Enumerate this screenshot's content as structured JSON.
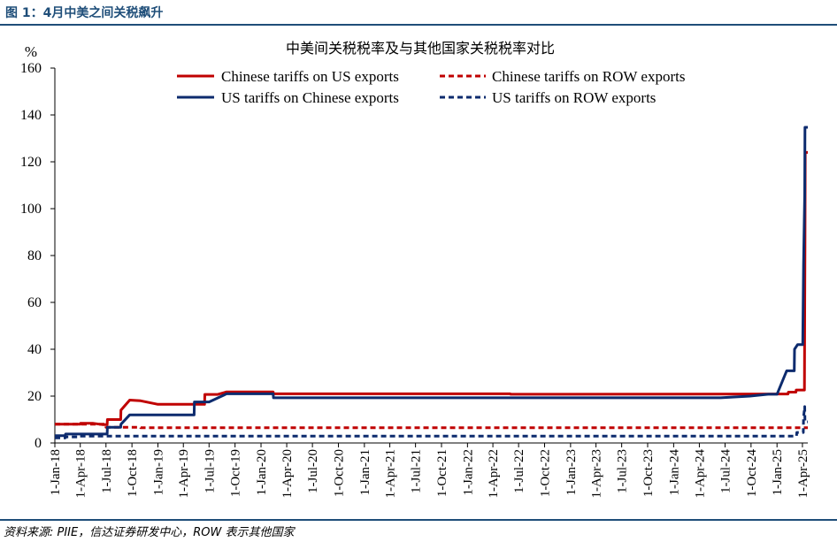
{
  "figure": {
    "title": "图 1：4月中美之间关税飙升",
    "source": "资料来源: PIIE，信达证券研发中心，ROW 表示其他国家"
  },
  "colors": {
    "red": "#c00000",
    "navy": "#0d2b6e",
    "title_blue": "#1f4e79"
  },
  "chart_data": {
    "type": "line",
    "title": "中美间关税税率及与其他国家关税税率对比",
    "ylabel": "%",
    "ylim": [
      0,
      160
    ],
    "yticks": [
      0,
      20,
      40,
      60,
      80,
      100,
      120,
      140,
      160
    ],
    "xlim": [
      "2018-01-01",
      "2025-04-20"
    ],
    "xticks": [
      "2018-01-01",
      "2018-04-01",
      "2018-07-01",
      "2018-10-01",
      "2019-01-01",
      "2019-04-01",
      "2019-07-01",
      "2019-10-01",
      "2020-01-01",
      "2020-04-01",
      "2020-07-01",
      "2020-10-01",
      "2021-01-01",
      "2021-04-01",
      "2021-07-01",
      "2021-10-01",
      "2022-01-01",
      "2022-04-01",
      "2022-07-01",
      "2022-10-01",
      "2023-01-01",
      "2023-04-01",
      "2023-07-01",
      "2023-10-01",
      "2024-01-01",
      "2024-04-01",
      "2024-07-01",
      "2024-10-01",
      "2025-01-01",
      "2025-04-01"
    ],
    "xtick_labels": [
      "1-Jan-18",
      "1-Apr-18",
      "1-Jul-18",
      "1-Oct-18",
      "1-Jan-19",
      "1-Apr-19",
      "1-Jul-19",
      "1-Oct-19",
      "1-Jan-20",
      "1-Apr-20",
      "1-Jul-20",
      "1-Oct-20",
      "1-Jan-21",
      "1-Apr-21",
      "1-Jul-21",
      "1-Oct-21",
      "1-Jan-22",
      "1-Apr-22",
      "1-Jul-22",
      "1-Oct-22",
      "1-Jan-23",
      "1-Apr-23",
      "1-Jul-23",
      "1-Oct-23",
      "1-Jan-24",
      "1-Apr-24",
      "1-Jul-24",
      "1-Oct-24",
      "1-Jan-25",
      "1-Apr-25"
    ],
    "grid": false,
    "legend_position": "top",
    "series": [
      {
        "name": "Chinese tariffs on US exports",
        "color": "red",
        "dash": "solid",
        "points": [
          [
            "2018-01-01",
            8.0
          ],
          [
            "2018-04-01",
            8.0
          ],
          [
            "2018-04-02",
            8.4
          ],
          [
            "2018-05-15",
            8.4
          ],
          [
            "2018-06-20",
            7.8
          ],
          [
            "2018-07-05",
            7.8
          ],
          [
            "2018-07-06",
            10.0
          ],
          [
            "2018-08-22",
            10.0
          ],
          [
            "2018-08-23",
            14.0
          ],
          [
            "2018-09-23",
            18.3
          ],
          [
            "2018-11-01",
            18.0
          ],
          [
            "2019-01-01",
            16.5
          ],
          [
            "2019-06-15",
            16.5
          ],
          [
            "2019-06-16",
            20.7
          ],
          [
            "2019-08-01",
            20.7
          ],
          [
            "2019-09-01",
            21.8
          ],
          [
            "2020-02-13",
            21.8
          ],
          [
            "2020-02-14",
            21.0
          ],
          [
            "2022-06-01",
            21.0
          ],
          [
            "2022-06-02",
            20.8
          ],
          [
            "2025-01-01",
            20.9
          ],
          [
            "2025-02-09",
            20.9
          ],
          [
            "2025-02-10",
            21.7
          ],
          [
            "2025-03-09",
            21.7
          ],
          [
            "2025-03-10",
            22.6
          ],
          [
            "2025-04-08",
            22.6
          ],
          [
            "2025-04-09",
            56.0
          ],
          [
            "2025-04-10",
            84.0
          ],
          [
            "2025-04-11",
            124.0
          ],
          [
            "2025-04-20",
            124.0
          ]
        ]
      },
      {
        "name": "Chinese tariffs on ROW exports",
        "color": "red",
        "dash": "dashed",
        "points": [
          [
            "2018-01-01",
            8.0
          ],
          [
            "2018-06-30",
            8.0
          ],
          [
            "2018-07-01",
            6.7
          ],
          [
            "2018-10-31",
            6.7
          ],
          [
            "2018-11-01",
            6.5
          ],
          [
            "2025-04-20",
            6.5
          ]
        ]
      },
      {
        "name": "US tariffs on Chinese exports",
        "color": "navy",
        "dash": "solid",
        "points": [
          [
            "2018-01-01",
            3.1
          ],
          [
            "2018-02-07",
            3.1
          ],
          [
            "2018-02-08",
            3.8
          ],
          [
            "2018-07-05",
            3.8
          ],
          [
            "2018-07-06",
            6.7
          ],
          [
            "2018-08-22",
            6.7
          ],
          [
            "2018-08-23",
            8.0
          ],
          [
            "2018-09-23",
            12.0
          ],
          [
            "2019-05-09",
            12.0
          ],
          [
            "2019-05-10",
            17.5
          ],
          [
            "2019-07-01",
            17.5
          ],
          [
            "2019-09-01",
            21.0
          ],
          [
            "2020-02-13",
            21.0
          ],
          [
            "2020-02-14",
            19.3
          ],
          [
            "2024-06-15",
            19.3
          ],
          [
            "2024-09-27",
            20.0
          ],
          [
            "2024-12-01",
            20.8
          ],
          [
            "2025-01-01",
            20.8
          ],
          [
            "2025-02-04",
            30.8
          ],
          [
            "2025-03-03",
            30.8
          ],
          [
            "2025-03-04",
            40.0
          ],
          [
            "2025-03-15",
            42.0
          ],
          [
            "2025-04-01",
            42.0
          ],
          [
            "2025-04-02",
            42.0
          ],
          [
            "2025-04-05",
            76.0
          ],
          [
            "2025-04-09",
            106.0
          ],
          [
            "2025-04-10",
            134.7
          ],
          [
            "2025-04-20",
            134.7
          ]
        ]
      },
      {
        "name": "US tariffs on ROW exports",
        "color": "navy",
        "dash": "dashed",
        "points": [
          [
            "2018-01-01",
            2.2
          ],
          [
            "2018-02-07",
            2.2
          ],
          [
            "2018-02-08",
            2.6
          ],
          [
            "2018-03-23",
            2.6
          ],
          [
            "2018-03-24",
            2.9
          ],
          [
            "2025-03-11",
            2.9
          ],
          [
            "2025-03-12",
            4.5
          ],
          [
            "2025-04-04",
            4.5
          ],
          [
            "2025-04-05",
            11.0
          ],
          [
            "2025-04-09",
            15.5
          ],
          [
            "2025-04-10",
            9.0
          ],
          [
            "2025-04-20",
            9.0
          ]
        ]
      }
    ]
  }
}
